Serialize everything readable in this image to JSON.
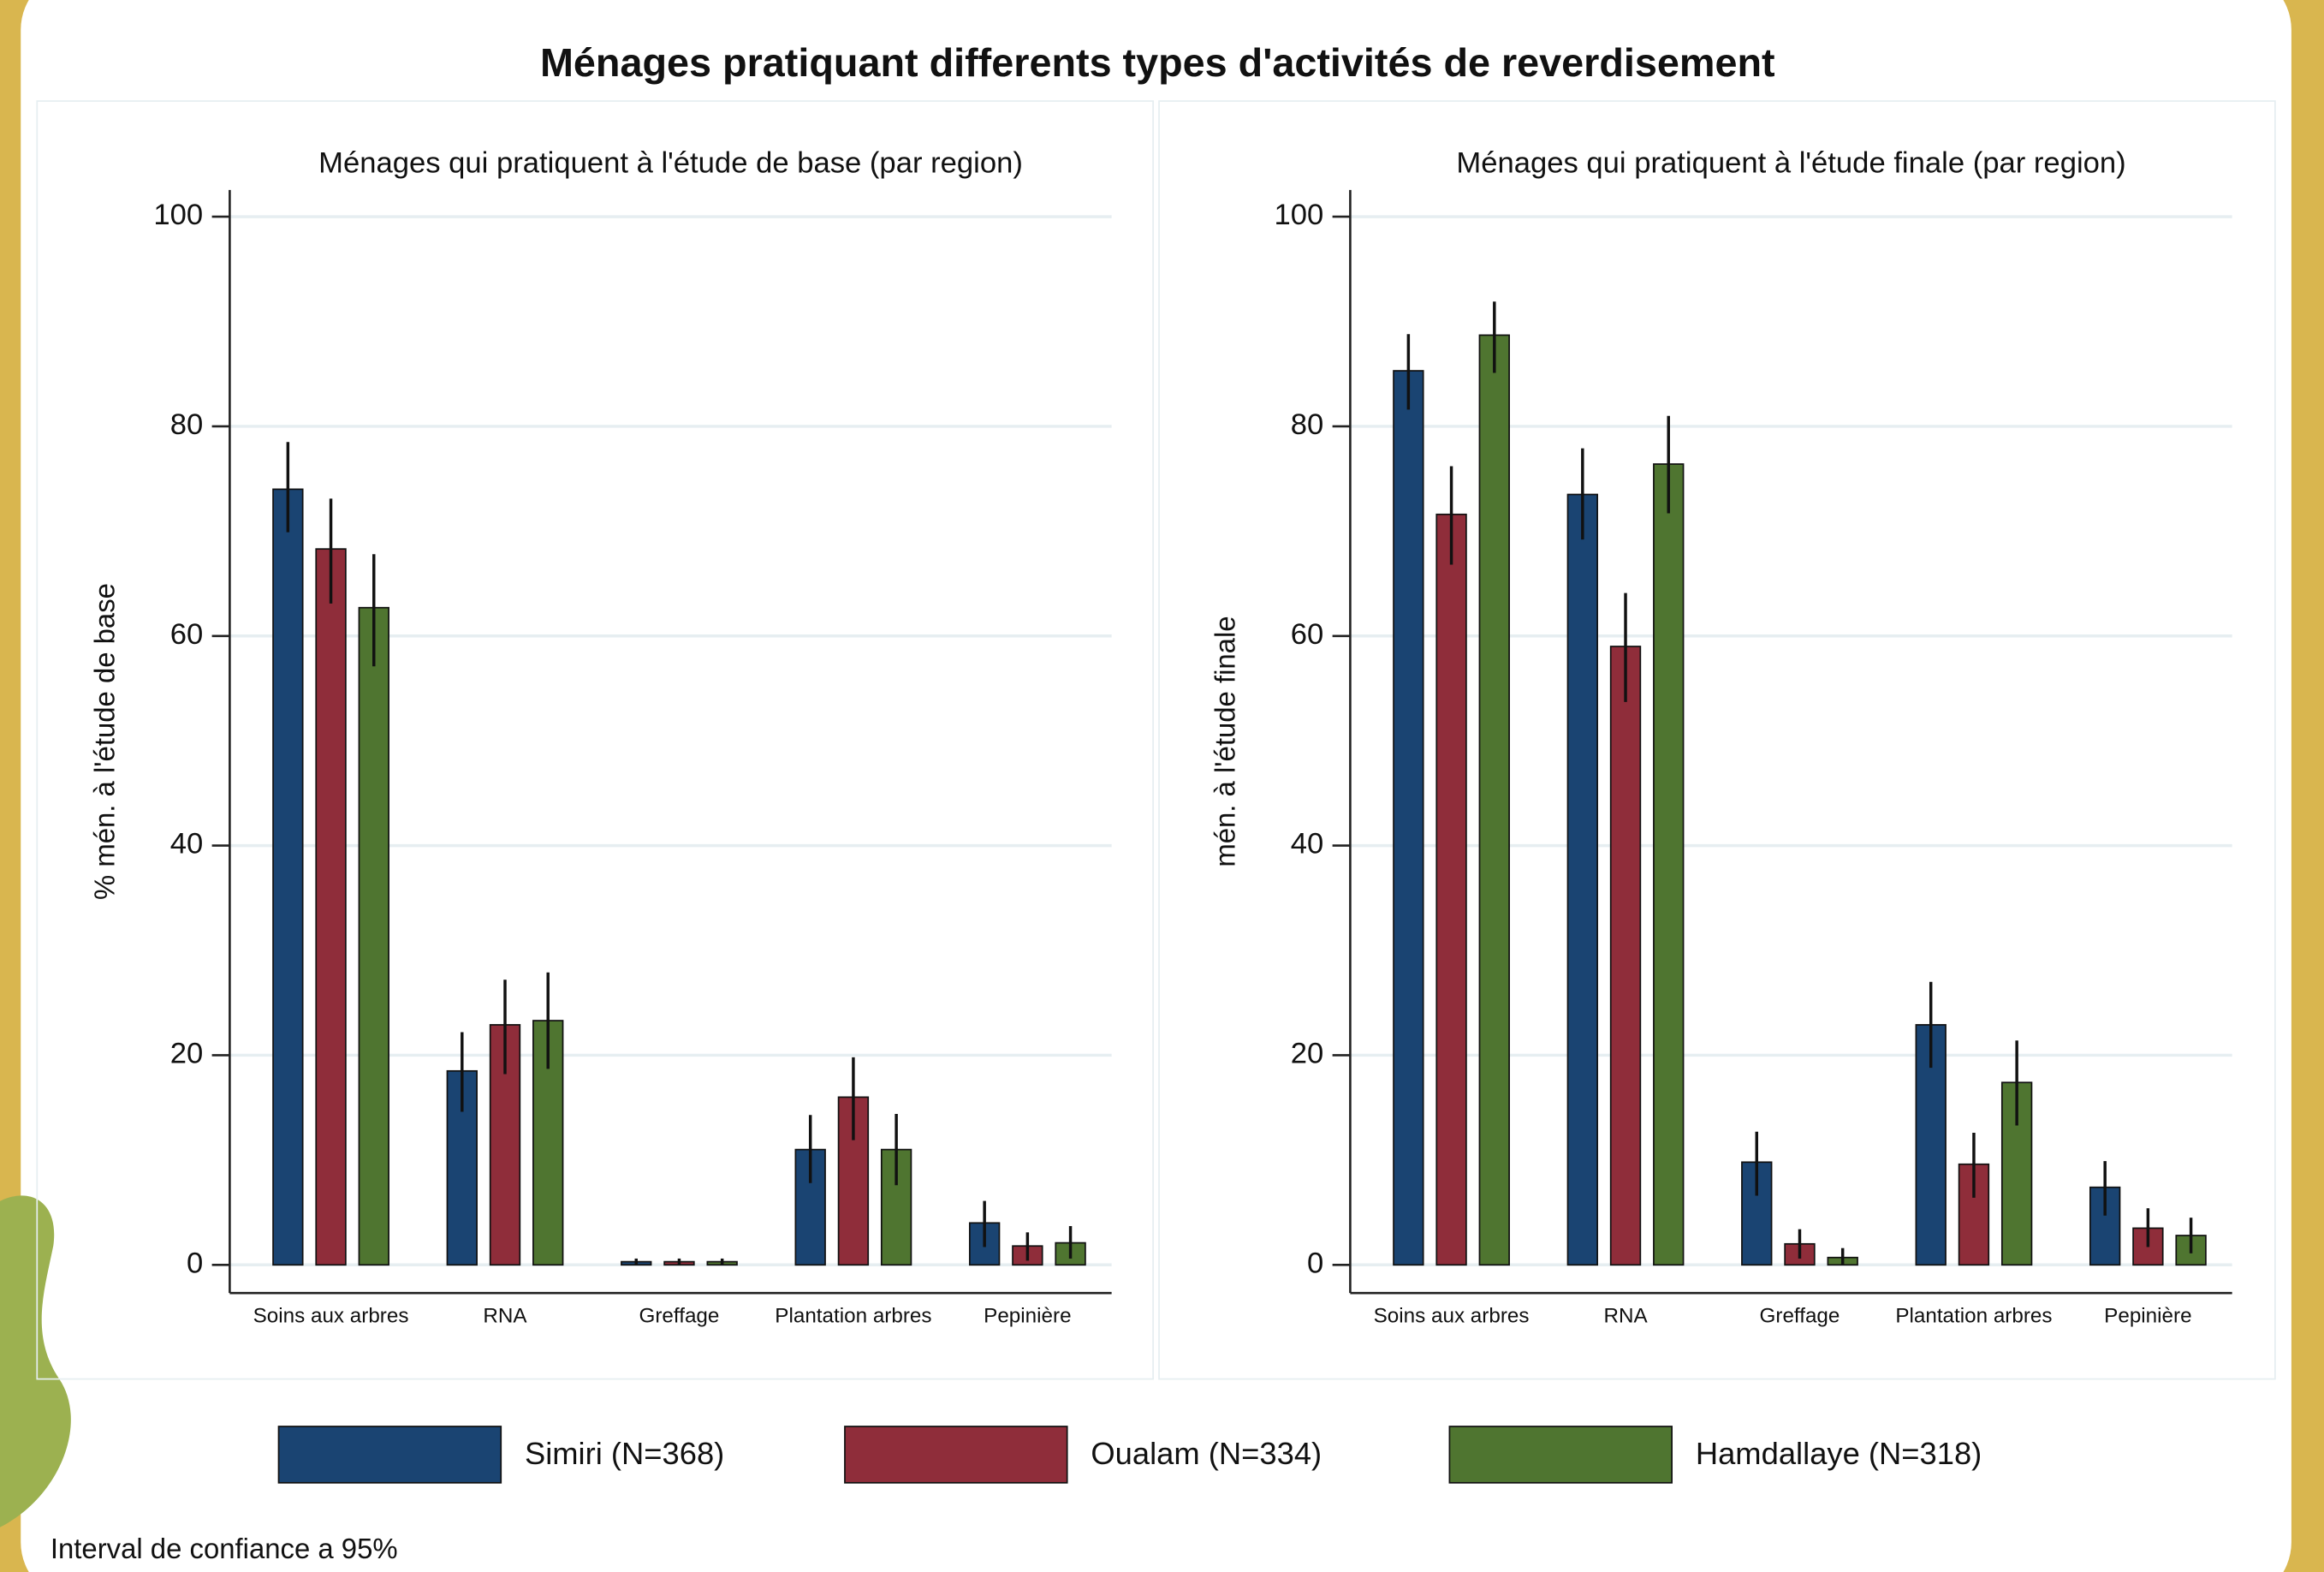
{
  "title": "Ménages pratiquant differents types d'activités de reverdisement",
  "note": "Interval de confiance a 95%",
  "chart_data": [
    {
      "type": "bar",
      "subtitle": "Ménages qui pratiquent à l'étude de base (par region)",
      "ylabel": "% mén. à l'étude de base",
      "categories": [
        "Soins aux arbres",
        "RNA",
        "Greffage",
        "Plantation arbres",
        "Pepinière"
      ],
      "ylim": [
        0,
        100
      ],
      "yticks": [
        0,
        20,
        40,
        60,
        80,
        100
      ],
      "grid": true,
      "legend": "bottom",
      "series": [
        {
          "name": "Simiri (N=368)",
          "color": "#1a4472",
          "values": [
            74,
            18.5,
            0.3,
            11,
            4
          ],
          "ci_low": [
            69.9,
            14.6,
            0,
            7.8,
            1.7
          ],
          "ci_high": [
            78.5,
            22.2,
            0.6,
            14.3,
            6.1
          ]
        },
        {
          "name": "Oualam (N=334)",
          "color": "#8f2d3a",
          "values": [
            68.3,
            22.9,
            0.3,
            16,
            1.8
          ],
          "ci_low": [
            63.1,
            18.2,
            0,
            11.9,
            0.4
          ],
          "ci_high": [
            73.1,
            27.2,
            0.6,
            19.8,
            3.1
          ]
        },
        {
          "name": "Hamdallaye (N=318)",
          "color": "#4f7530",
          "values": [
            62.7,
            23.3,
            0.3,
            11,
            2.1
          ],
          "ci_low": [
            57.1,
            18.7,
            0,
            7.6,
            0.6
          ],
          "ci_high": [
            67.8,
            27.9,
            0.6,
            14.4,
            3.7
          ]
        }
      ]
    },
    {
      "type": "bar",
      "subtitle": "Ménages qui pratiquent à l'étude finale (par region)",
      "ylabel": "mén. à l'étude finale",
      "categories": [
        "Soins aux arbres",
        "RNA",
        "Greffage",
        "Plantation arbres",
        "Pepinière"
      ],
      "ylim": [
        0,
        100
      ],
      "yticks": [
        0,
        20,
        40,
        60,
        80,
        100
      ],
      "grid": true,
      "series": [
        {
          "color": "#1a4472",
          "values": [
            85.3,
            73.5,
            9.8,
            22.9,
            7.4
          ],
          "ci_low": [
            81.6,
            69.2,
            6.6,
            18.8,
            4.7
          ],
          "ci_high": [
            88.8,
            77.9,
            12.7,
            27,
            9.9
          ]
        },
        {
          "color": "#8f2d3a",
          "values": [
            71.6,
            59,
            2,
            9.6,
            3.5
          ],
          "ci_low": [
            66.8,
            53.7,
            0.6,
            6.4,
            1.7
          ],
          "ci_high": [
            76.2,
            64.1,
            3.4,
            12.6,
            5.4
          ]
        },
        {
          "color": "#4f7530",
          "values": [
            88.7,
            76.4,
            0.7,
            17.4,
            2.8
          ],
          "ci_low": [
            85.1,
            71.7,
            0,
            13.3,
            1.1
          ],
          "ci_high": [
            91.9,
            81,
            1.6,
            21.4,
            4.5
          ]
        }
      ]
    }
  ]
}
